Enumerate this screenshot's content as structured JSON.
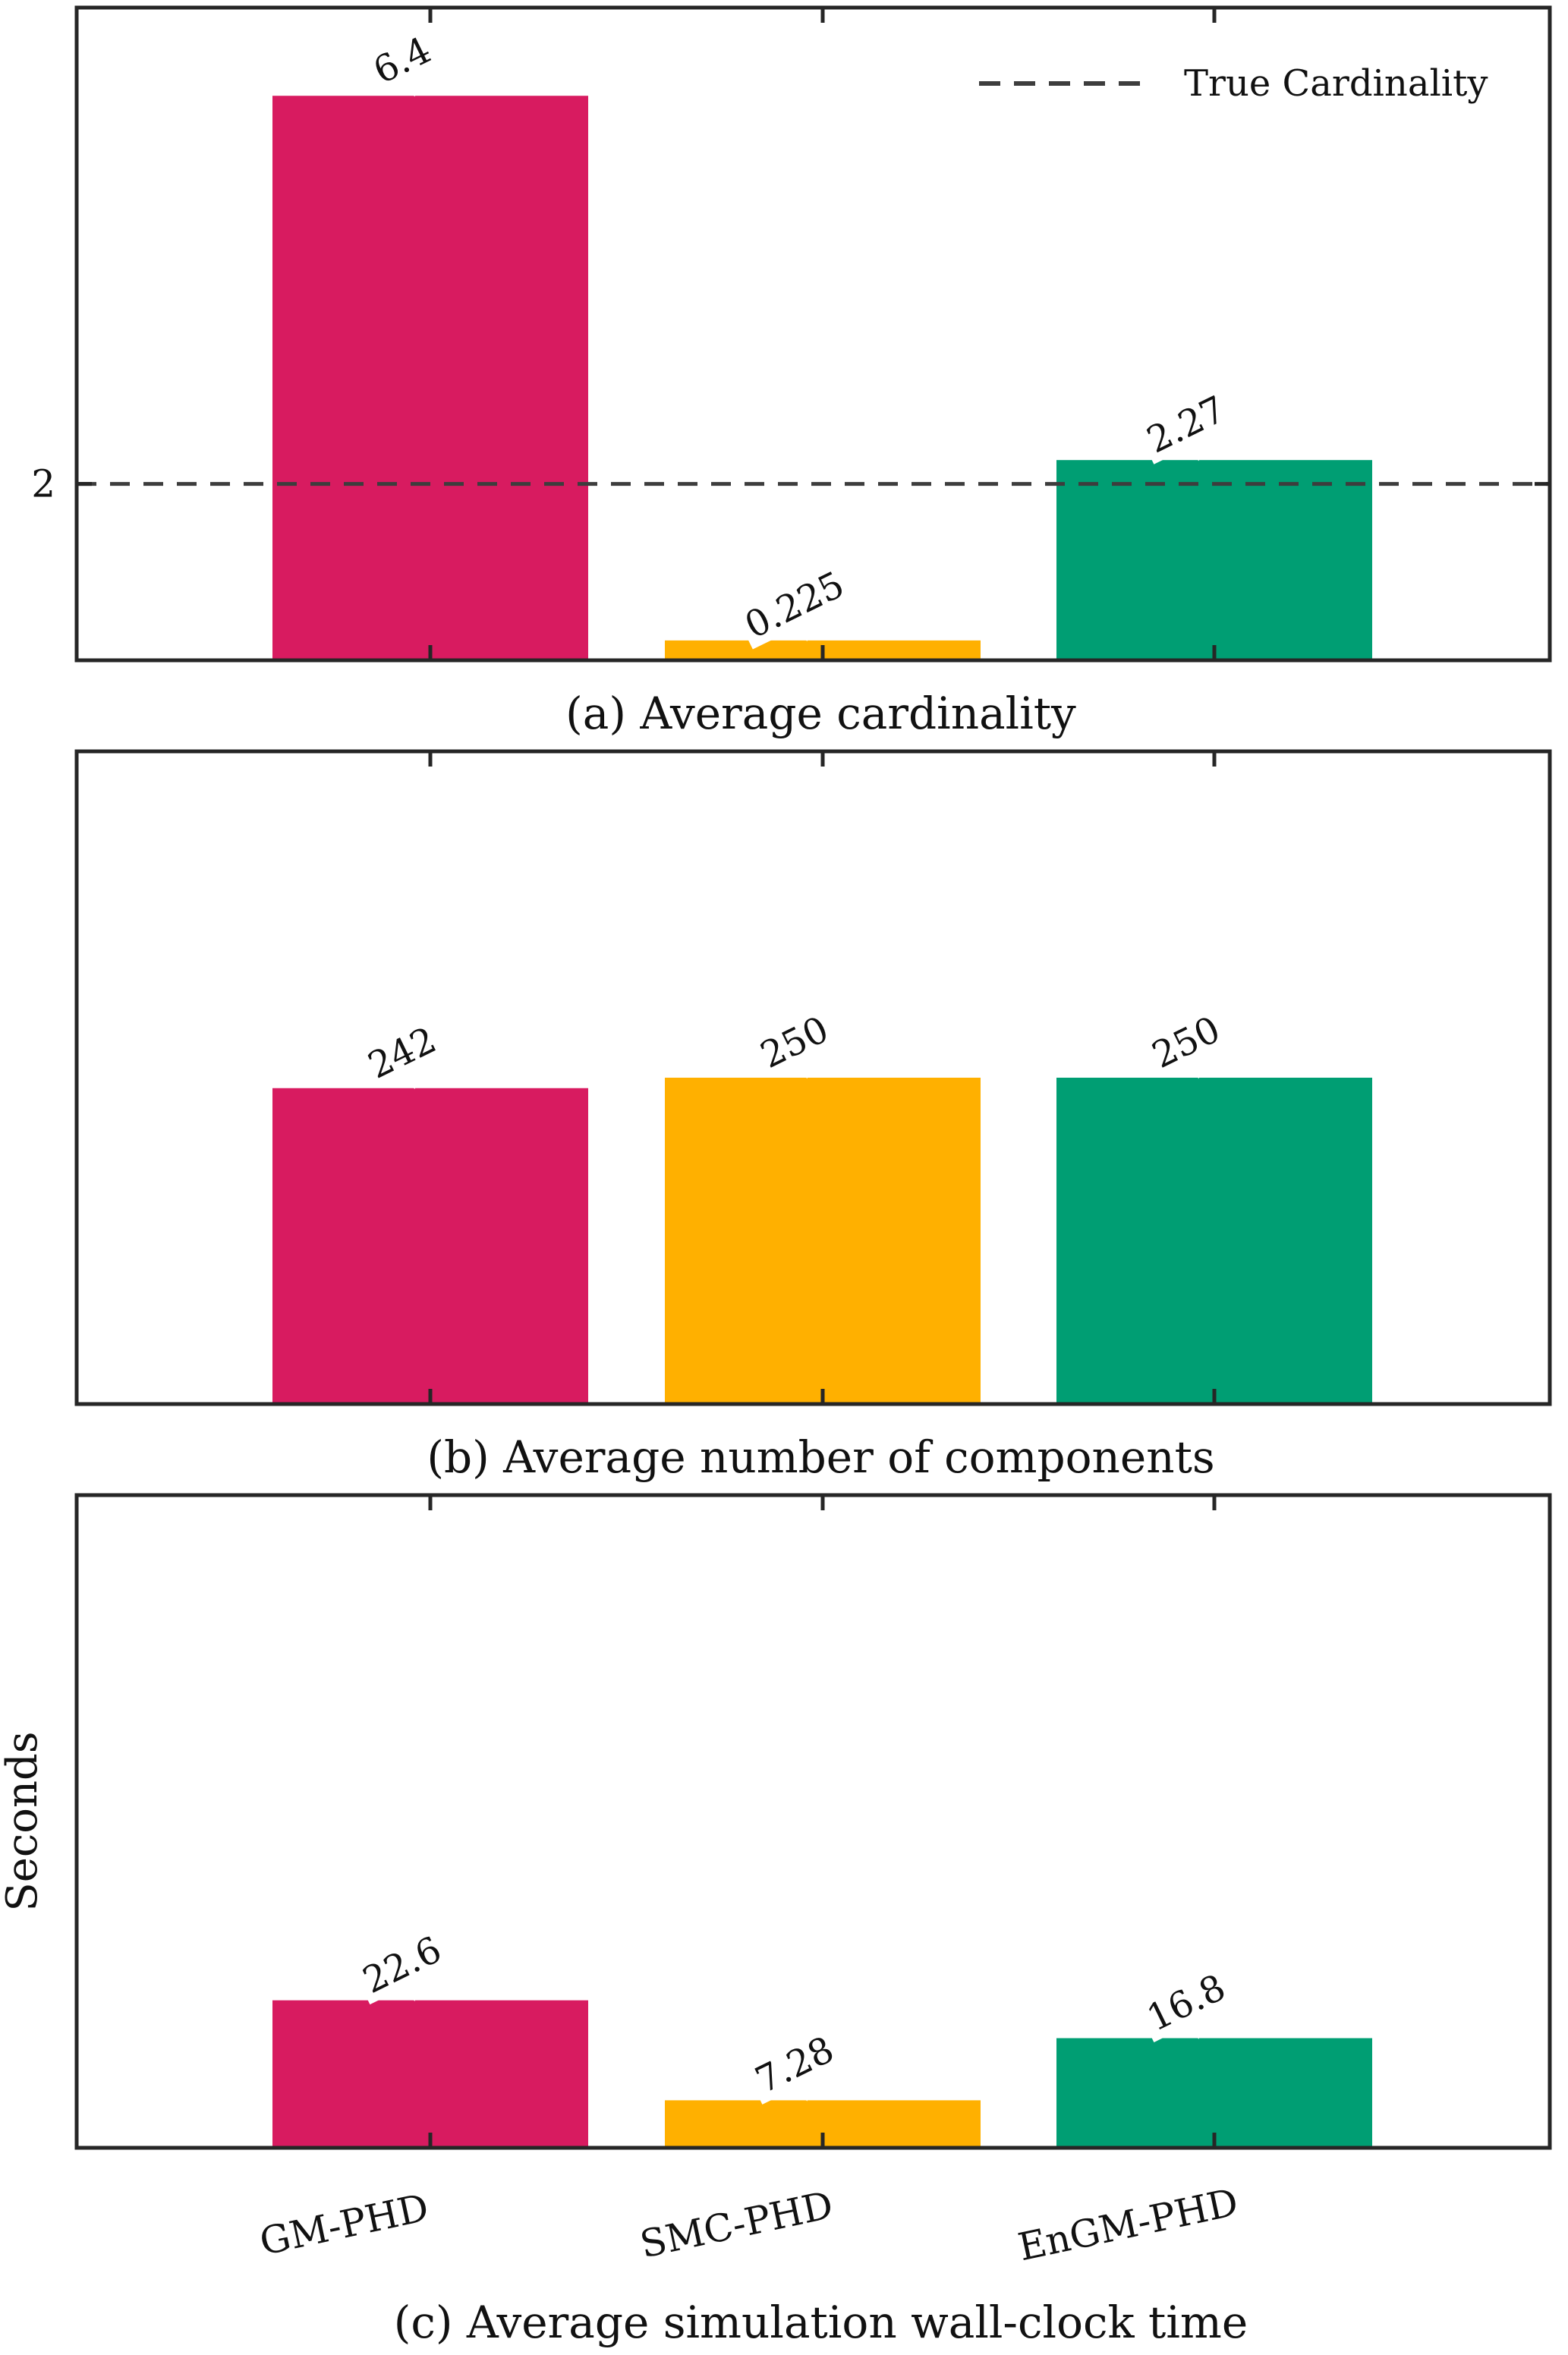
{
  "colors": {
    "gm_phd": "#d81b60",
    "smc_phd": "#ffb000",
    "engm_phd": "#009e73",
    "axis": "#262626",
    "reference_line": "#3d3d3d"
  },
  "chart_data": [
    {
      "type": "bar",
      "caption": "(a) Average cardinality",
      "categories": [
        "GM-PHD",
        "SMC-PHD",
        "EnGM-PHD"
      ],
      "values": [
        6.4,
        0.225,
        2.27
      ],
      "value_labels": [
        "6.4",
        "0.225",
        "2.27"
      ],
      "ylim": [
        0,
        7.4
      ],
      "yticks": [
        2
      ],
      "ytick_labels": [
        "2"
      ],
      "reference_line": {
        "value": 2,
        "style": "dashed",
        "legend": "True Cardinality"
      },
      "legend_position": "top-right",
      "ylabel": "",
      "grid": false
    },
    {
      "type": "bar",
      "caption": "(b) Average number of components",
      "categories": [
        "GM-PHD",
        "SMC-PHD",
        "EnGM-PHD"
      ],
      "values": [
        242,
        250,
        250
      ],
      "value_labels": [
        "242",
        "250",
        "250"
      ],
      "ylim": [
        0,
        500
      ],
      "yticks": [],
      "ylabel": "",
      "grid": false
    },
    {
      "type": "bar",
      "caption": "(c) Average simulation wall-clock time",
      "categories": [
        "GM-PHD",
        "SMC-PHD",
        "EnGM-PHD"
      ],
      "values": [
        22.6,
        7.28,
        16.8
      ],
      "value_labels": [
        "22.6",
        "7.28",
        "16.8"
      ],
      "ylim": [
        0,
        100
      ],
      "yticks": [],
      "ylabel": "Seconds",
      "xtick_labels": [
        "GM-PHD",
        "SMC-PHD",
        "EnGM-PHD"
      ],
      "grid": false
    }
  ]
}
